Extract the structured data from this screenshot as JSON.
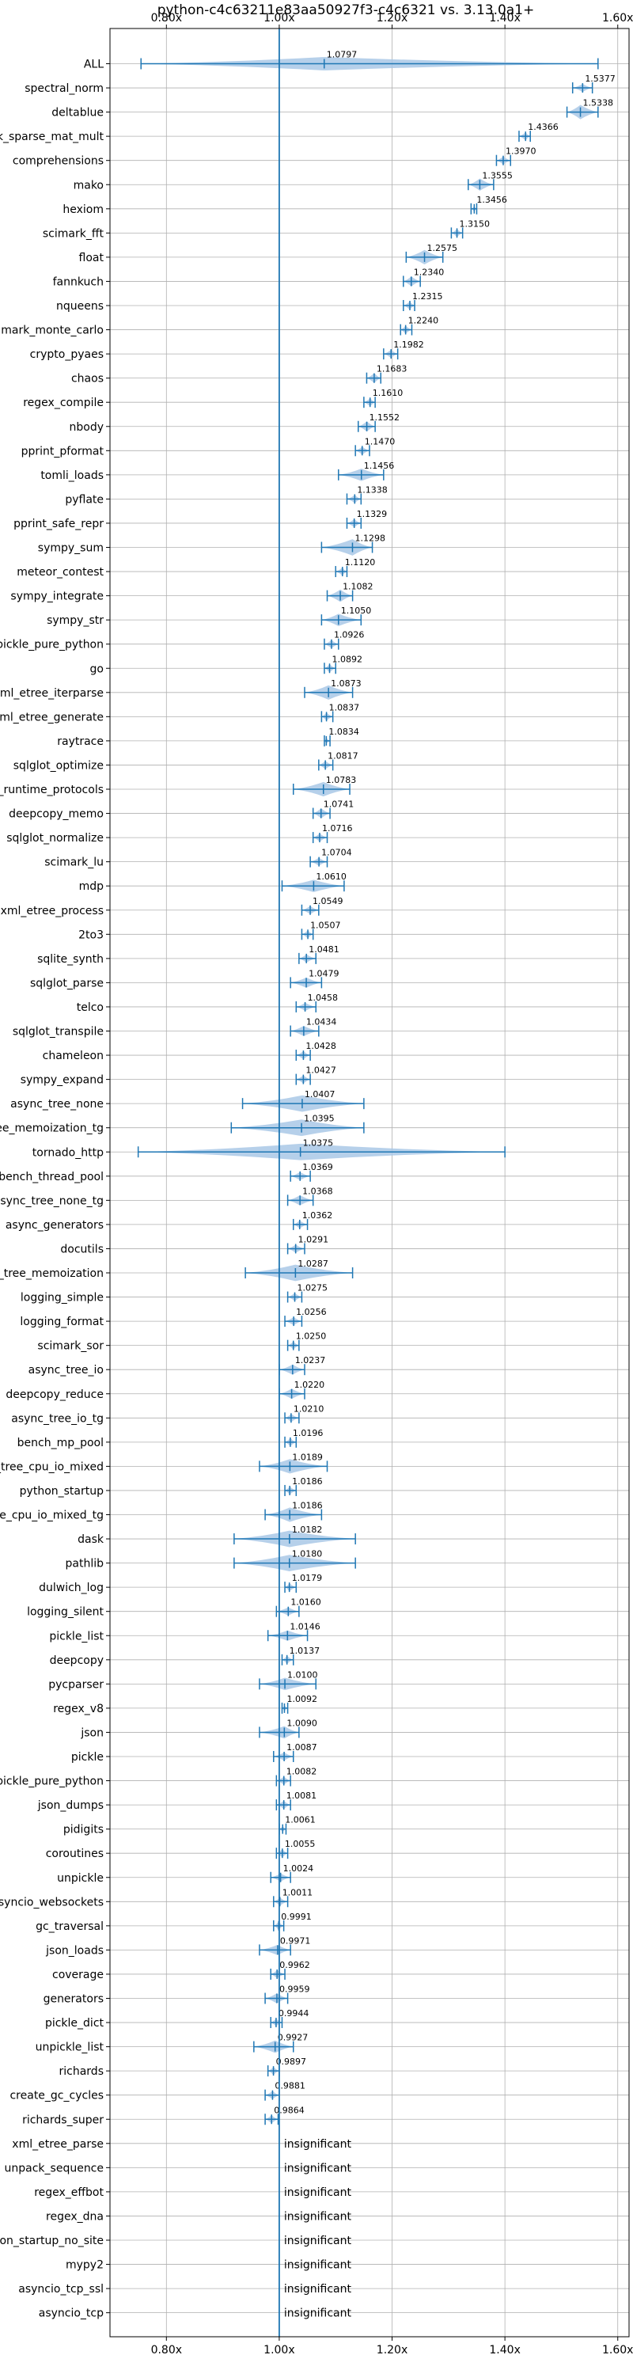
{
  "chart_data": {
    "type": "violin",
    "title": "python-c4c63211e83aa50927f3-c4c6321 vs. 3.13.0a1+",
    "xlim": [
      0.7,
      1.62
    ],
    "xticks": [
      0.8,
      1.0,
      1.2,
      1.4,
      1.6
    ],
    "xtick_labels": [
      "0.80x",
      "1.00x",
      "1.20x",
      "1.40x",
      "1.60x"
    ],
    "reference_line": 1.0,
    "grid": true,
    "colors": {
      "violin": "#a9c8e6",
      "line": "#1f77b4",
      "grid": "#b0b0b0",
      "text": "#000000"
    },
    "insignificant_label": "insignificant",
    "benchmarks": [
      {
        "name": "ALL",
        "value": 1.0797,
        "label": "1.0797",
        "min": 0.755,
        "max": 1.565,
        "width": 0.65
      },
      {
        "name": "spectral_norm",
        "value": 1.5377,
        "label": "1.5377",
        "min": 1.52,
        "max": 1.555,
        "width": 0.4
      },
      {
        "name": "deltablue",
        "value": 1.5338,
        "label": "1.5338",
        "min": 1.51,
        "max": 1.565,
        "width": 0.7
      },
      {
        "name": "scimark_sparse_mat_mult",
        "value": 1.4366,
        "label": "1.4366",
        "min": 1.425,
        "max": 1.445,
        "width": 0.4
      },
      {
        "name": "comprehensions",
        "value": 1.397,
        "label": "1.3970",
        "min": 1.385,
        "max": 1.41,
        "width": 0.4
      },
      {
        "name": "mako",
        "value": 1.3555,
        "label": "1.3555",
        "min": 1.335,
        "max": 1.38,
        "width": 0.6
      },
      {
        "name": "hexiom",
        "value": 1.3456,
        "label": "1.3456",
        "min": 1.34,
        "max": 1.35,
        "width": 0.3
      },
      {
        "name": "scimark_fft",
        "value": 1.315,
        "label": "1.3150",
        "min": 1.305,
        "max": 1.325,
        "width": 0.4
      },
      {
        "name": "float",
        "value": 1.2575,
        "label": "1.2575",
        "min": 1.225,
        "max": 1.29,
        "width": 0.7
      },
      {
        "name": "fannkuch",
        "value": 1.234,
        "label": "1.2340",
        "min": 1.22,
        "max": 1.25,
        "width": 0.5
      },
      {
        "name": "nqueens",
        "value": 1.2315,
        "label": "1.2315",
        "min": 1.22,
        "max": 1.24,
        "width": 0.4
      },
      {
        "name": "scimark_monte_carlo",
        "value": 1.224,
        "label": "1.2240",
        "min": 1.215,
        "max": 1.235,
        "width": 0.4
      },
      {
        "name": "crypto_pyaes",
        "value": 1.1982,
        "label": "1.1982",
        "min": 1.185,
        "max": 1.21,
        "width": 0.4
      },
      {
        "name": "chaos",
        "value": 1.1683,
        "label": "1.1683",
        "min": 1.155,
        "max": 1.18,
        "width": 0.5
      },
      {
        "name": "regex_compile",
        "value": 1.161,
        "label": "1.1610",
        "min": 1.15,
        "max": 1.17,
        "width": 0.4
      },
      {
        "name": "nbody",
        "value": 1.1552,
        "label": "1.1552",
        "min": 1.14,
        "max": 1.17,
        "width": 0.5
      },
      {
        "name": "pprint_pformat",
        "value": 1.147,
        "label": "1.1470",
        "min": 1.135,
        "max": 1.16,
        "width": 0.4
      },
      {
        "name": "tomli_loads",
        "value": 1.1456,
        "label": "1.1456",
        "min": 1.105,
        "max": 1.185,
        "width": 0.6
      },
      {
        "name": "pyflate",
        "value": 1.1338,
        "label": "1.1338",
        "min": 1.12,
        "max": 1.145,
        "width": 0.4
      },
      {
        "name": "pprint_safe_repr",
        "value": 1.1329,
        "label": "1.1329",
        "min": 1.12,
        "max": 1.145,
        "width": 0.4
      },
      {
        "name": "sympy_sum",
        "value": 1.1298,
        "label": "1.1298",
        "min": 1.075,
        "max": 1.165,
        "width": 0.8
      },
      {
        "name": "meteor_contest",
        "value": 1.112,
        "label": "1.1120",
        "min": 1.1,
        "max": 1.12,
        "width": 0.4
      },
      {
        "name": "sympy_integrate",
        "value": 1.1082,
        "label": "1.1082",
        "min": 1.085,
        "max": 1.13,
        "width": 0.6
      },
      {
        "name": "sympy_str",
        "value": 1.105,
        "label": "1.1050",
        "min": 1.075,
        "max": 1.145,
        "width": 0.6
      },
      {
        "name": "unpickle_pure_python",
        "value": 1.0926,
        "label": "1.0926",
        "min": 1.08,
        "max": 1.105,
        "width": 0.4
      },
      {
        "name": "go",
        "value": 1.0892,
        "label": "1.0892",
        "min": 1.08,
        "max": 1.1,
        "width": 0.4
      },
      {
        "name": "xml_etree_iterparse",
        "value": 1.0873,
        "label": "1.0873",
        "min": 1.045,
        "max": 1.13,
        "width": 0.7
      },
      {
        "name": "xml_etree_generate",
        "value": 1.0837,
        "label": "1.0837",
        "min": 1.075,
        "max": 1.095,
        "width": 0.4
      },
      {
        "name": "raytrace",
        "value": 1.0834,
        "label": "1.0834",
        "min": 1.08,
        "max": 1.09,
        "width": 0.3
      },
      {
        "name": "sqlglot_optimize",
        "value": 1.0817,
        "label": "1.0817",
        "min": 1.07,
        "max": 1.095,
        "width": 0.4
      },
      {
        "name": "typing_runtime_protocols",
        "value": 1.0783,
        "label": "1.0783",
        "min": 1.025,
        "max": 1.125,
        "width": 0.7
      },
      {
        "name": "deepcopy_memo",
        "value": 1.0741,
        "label": "1.0741",
        "min": 1.06,
        "max": 1.09,
        "width": 0.5
      },
      {
        "name": "sqlglot_normalize",
        "value": 1.0716,
        "label": "1.0716",
        "min": 1.06,
        "max": 1.085,
        "width": 0.4
      },
      {
        "name": "scimark_lu",
        "value": 1.0704,
        "label": "1.0704",
        "min": 1.055,
        "max": 1.085,
        "width": 0.4
      },
      {
        "name": "mdp",
        "value": 1.061,
        "label": "1.0610",
        "min": 1.005,
        "max": 1.115,
        "width": 0.6
      },
      {
        "name": "xml_etree_process",
        "value": 1.0549,
        "label": "1.0549",
        "min": 1.04,
        "max": 1.07,
        "width": 0.4
      },
      {
        "name": "2to3",
        "value": 1.0507,
        "label": "1.0507",
        "min": 1.04,
        "max": 1.06,
        "width": 0.4
      },
      {
        "name": "sqlite_synth",
        "value": 1.0481,
        "label": "1.0481",
        "min": 1.035,
        "max": 1.065,
        "width": 0.4
      },
      {
        "name": "sqlglot_parse",
        "value": 1.0479,
        "label": "1.0479",
        "min": 1.02,
        "max": 1.075,
        "width": 0.5
      },
      {
        "name": "telco",
        "value": 1.0458,
        "label": "1.0458",
        "min": 1.03,
        "max": 1.065,
        "width": 0.4
      },
      {
        "name": "sqlglot_transpile",
        "value": 1.0434,
        "label": "1.0434",
        "min": 1.02,
        "max": 1.07,
        "width": 0.5
      },
      {
        "name": "chameleon",
        "value": 1.0428,
        "label": "1.0428",
        "min": 1.03,
        "max": 1.055,
        "width": 0.4
      },
      {
        "name": "sympy_expand",
        "value": 1.0427,
        "label": "1.0427",
        "min": 1.03,
        "max": 1.055,
        "width": 0.4
      },
      {
        "name": "async_tree_none",
        "value": 1.0407,
        "label": "1.0407",
        "min": 0.935,
        "max": 1.15,
        "width": 0.8
      },
      {
        "name": "async_tree_memoization_tg",
        "value": 1.0395,
        "label": "1.0395",
        "min": 0.915,
        "max": 1.15,
        "width": 0.8
      },
      {
        "name": "tornado_http",
        "value": 1.0375,
        "label": "1.0375",
        "min": 0.75,
        "max": 1.4,
        "width": 0.8
      },
      {
        "name": "bench_thread_pool",
        "value": 1.0369,
        "label": "1.0369",
        "min": 1.02,
        "max": 1.055,
        "width": 0.4
      },
      {
        "name": "async_tree_none_tg",
        "value": 1.0368,
        "label": "1.0368",
        "min": 1.015,
        "max": 1.06,
        "width": 0.5
      },
      {
        "name": "async_generators",
        "value": 1.0362,
        "label": "1.0362",
        "min": 1.025,
        "max": 1.05,
        "width": 0.4
      },
      {
        "name": "docutils",
        "value": 1.0291,
        "label": "1.0291",
        "min": 1.015,
        "max": 1.045,
        "width": 0.4
      },
      {
        "name": "async_tree_memoization",
        "value": 1.0287,
        "label": "1.0287",
        "min": 0.94,
        "max": 1.13,
        "width": 0.8
      },
      {
        "name": "logging_simple",
        "value": 1.0275,
        "label": "1.0275",
        "min": 1.015,
        "max": 1.04,
        "width": 0.4
      },
      {
        "name": "logging_format",
        "value": 1.0256,
        "label": "1.0256",
        "min": 1.01,
        "max": 1.04,
        "width": 0.4
      },
      {
        "name": "scimark_sor",
        "value": 1.025,
        "label": "1.0250",
        "min": 1.015,
        "max": 1.035,
        "width": 0.4
      },
      {
        "name": "async_tree_io",
        "value": 1.0237,
        "label": "1.0237",
        "min": 1.0,
        "max": 1.045,
        "width": 0.5
      },
      {
        "name": "deepcopy_reduce",
        "value": 1.022,
        "label": "1.0220",
        "min": 1.0,
        "max": 1.045,
        "width": 0.5
      },
      {
        "name": "async_tree_io_tg",
        "value": 1.021,
        "label": "1.0210",
        "min": 1.01,
        "max": 1.035,
        "width": 0.4
      },
      {
        "name": "bench_mp_pool",
        "value": 1.0196,
        "label": "1.0196",
        "min": 1.01,
        "max": 1.03,
        "width": 0.4
      },
      {
        "name": "async_tree_cpu_io_mixed",
        "value": 1.0189,
        "label": "1.0189",
        "min": 0.965,
        "max": 1.085,
        "width": 0.7
      },
      {
        "name": "python_startup",
        "value": 1.0186,
        "label": "1.0186",
        "min": 1.01,
        "max": 1.03,
        "width": 0.4
      },
      {
        "name": "async_tree_cpu_io_mixed_tg",
        "value": 1.0186,
        "label": "1.0186",
        "min": 0.975,
        "max": 1.075,
        "width": 0.7
      },
      {
        "name": "dask",
        "value": 1.0182,
        "label": "1.0182",
        "min": 0.92,
        "max": 1.135,
        "width": 0.8
      },
      {
        "name": "pathlib",
        "value": 1.018,
        "label": "1.0180",
        "min": 0.92,
        "max": 1.135,
        "width": 0.8
      },
      {
        "name": "dulwich_log",
        "value": 1.0179,
        "label": "1.0179",
        "min": 1.01,
        "max": 1.03,
        "width": 0.4
      },
      {
        "name": "logging_silent",
        "value": 1.016,
        "label": "1.0160",
        "min": 0.995,
        "max": 1.035,
        "width": 0.4
      },
      {
        "name": "pickle_list",
        "value": 1.0146,
        "label": "1.0146",
        "min": 0.98,
        "max": 1.05,
        "width": 0.5
      },
      {
        "name": "deepcopy",
        "value": 1.0137,
        "label": "1.0137",
        "min": 1.005,
        "max": 1.025,
        "width": 0.4
      },
      {
        "name": "pycparser",
        "value": 1.01,
        "label": "1.0100",
        "min": 0.965,
        "max": 1.065,
        "width": 0.6
      },
      {
        "name": "regex_v8",
        "value": 1.0092,
        "label": "1.0092",
        "min": 1.005,
        "max": 1.015,
        "width": 0.3
      },
      {
        "name": "json",
        "value": 1.009,
        "label": "1.0090",
        "min": 0.965,
        "max": 1.035,
        "width": 0.6
      },
      {
        "name": "pickle",
        "value": 1.0087,
        "label": "1.0087",
        "min": 0.99,
        "max": 1.025,
        "width": 0.4
      },
      {
        "name": "pickle_pure_python",
        "value": 1.0082,
        "label": "1.0082",
        "min": 0.995,
        "max": 1.02,
        "width": 0.4
      },
      {
        "name": "json_dumps",
        "value": 1.0081,
        "label": "1.0081",
        "min": 0.995,
        "max": 1.02,
        "width": 0.4
      },
      {
        "name": "pidigits",
        "value": 1.0061,
        "label": "1.0061",
        "min": 1.0,
        "max": 1.012,
        "width": 0.3
      },
      {
        "name": "coroutines",
        "value": 1.0055,
        "label": "1.0055",
        "min": 0.995,
        "max": 1.015,
        "width": 0.4
      },
      {
        "name": "unpickle",
        "value": 1.0024,
        "label": "1.0024",
        "min": 0.985,
        "max": 1.02,
        "width": 0.4
      },
      {
        "name": "asyncio_websockets",
        "value": 1.0011,
        "label": "1.0011",
        "min": 0.99,
        "max": 1.015,
        "width": 0.4
      },
      {
        "name": "gc_traversal",
        "value": 0.9991,
        "label": "0.9991",
        "min": 0.99,
        "max": 1.008,
        "width": 0.4
      },
      {
        "name": "json_loads",
        "value": 0.9971,
        "label": "0.9971",
        "min": 0.965,
        "max": 1.02,
        "width": 0.5
      },
      {
        "name": "coverage",
        "value": 0.9962,
        "label": "0.9962",
        "min": 0.985,
        "max": 1.01,
        "width": 0.4
      },
      {
        "name": "generators",
        "value": 0.9959,
        "label": "0.9959",
        "min": 0.975,
        "max": 1.015,
        "width": 0.5
      },
      {
        "name": "pickle_dict",
        "value": 0.9944,
        "label": "0.9944",
        "min": 0.985,
        "max": 1.005,
        "width": 0.4
      },
      {
        "name": "unpickle_list",
        "value": 0.9927,
        "label": "0.9927",
        "min": 0.955,
        "max": 1.025,
        "width": 0.6
      },
      {
        "name": "richards",
        "value": 0.9897,
        "label": "0.9897",
        "min": 0.98,
        "max": 1.0,
        "width": 0.4
      },
      {
        "name": "create_gc_cycles",
        "value": 0.9881,
        "label": "0.9881",
        "min": 0.975,
        "max": 1.0,
        "width": 0.4
      },
      {
        "name": "richards_super",
        "value": 0.9864,
        "label": "0.9864",
        "min": 0.975,
        "max": 0.998,
        "width": 0.4
      },
      {
        "name": "xml_etree_parse",
        "value": null,
        "label": "insignificant"
      },
      {
        "name": "unpack_sequence",
        "value": null,
        "label": "insignificant"
      },
      {
        "name": "regex_effbot",
        "value": null,
        "label": "insignificant"
      },
      {
        "name": "regex_dna",
        "value": null,
        "label": "insignificant"
      },
      {
        "name": "python_startup_no_site",
        "value": null,
        "label": "insignificant"
      },
      {
        "name": "mypy2",
        "value": null,
        "label": "insignificant"
      },
      {
        "name": "asyncio_tcp_ssl",
        "value": null,
        "label": "insignificant"
      },
      {
        "name": "asyncio_tcp",
        "value": null,
        "label": "insignificant"
      }
    ]
  }
}
